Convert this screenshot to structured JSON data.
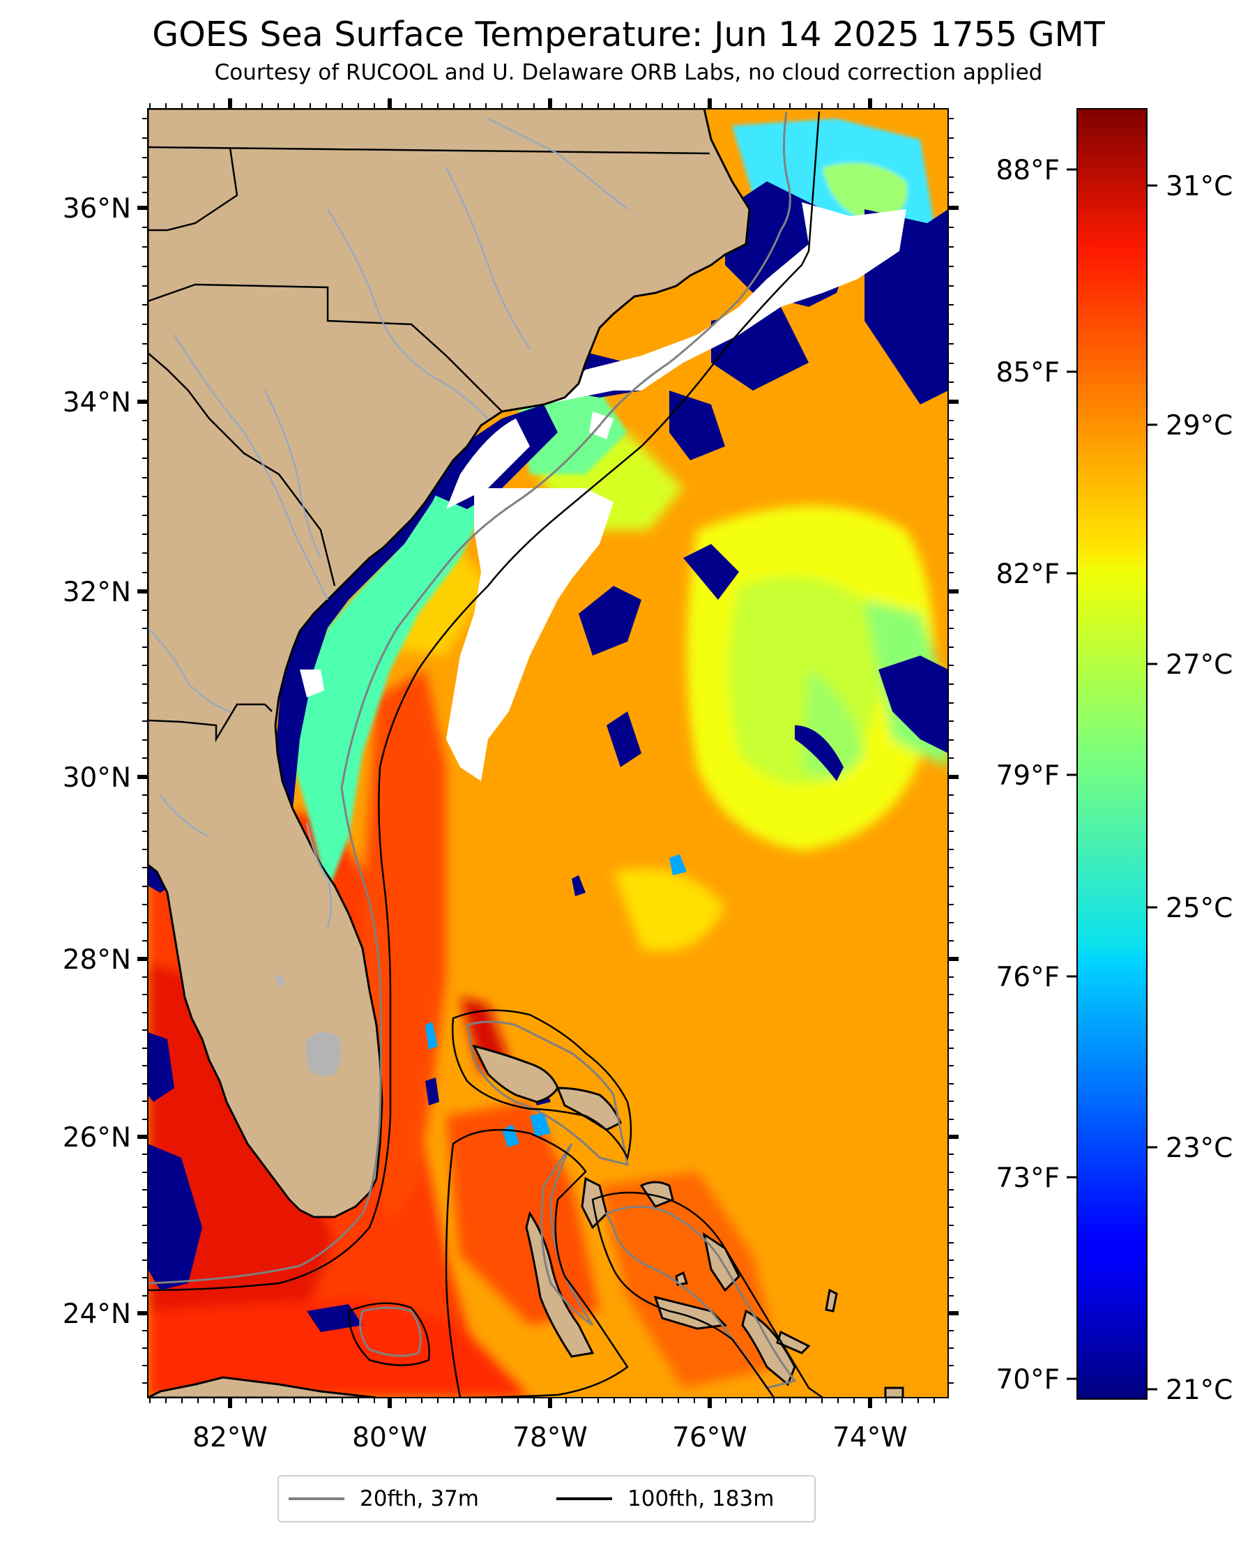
{
  "title": "GOES Sea Surface Temperature: Jun 14 2025 1755 GMT",
  "subtitle": "Courtesy of RUCOOL and U. Delaware ORB Labs, no cloud correction applied",
  "map": {
    "lon_range": [
      -83.0,
      -73.0
    ],
    "lat_range": [
      23.1,
      37.1
    ],
    "land_color": "#d2b48c",
    "cloud_color": "#ffffff",
    "lon_ticks": [
      "82°W",
      "80°W",
      "78°W",
      "76°W",
      "74°W"
    ],
    "lat_ticks": [
      "36°N",
      "34°N",
      "32°N",
      "30°N",
      "28°N",
      "26°N",
      "24°N"
    ],
    "fahrenheit_ticks": [
      "88°F",
      "85°F",
      "82°F",
      "79°F",
      "76°F",
      "73°F",
      "70°F"
    ]
  },
  "colorbar": {
    "colormap": "jet",
    "range_c": [
      20.8,
      31.6
    ],
    "celsius_ticks": [
      "31°C",
      "29°C",
      "27°C",
      "25°C",
      "23°C",
      "21°C"
    ]
  },
  "legend": [
    {
      "label": "20fth, 37m",
      "color": "#808080"
    },
    {
      "label": "100fth, 183m",
      "color": "#000000"
    }
  ]
}
